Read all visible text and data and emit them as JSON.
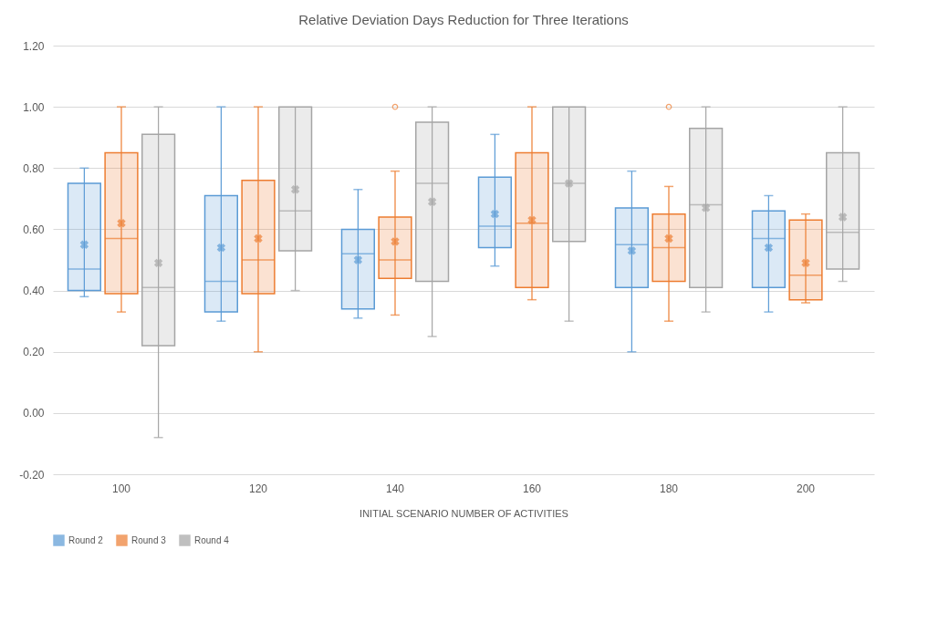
{
  "chart_data": {
    "type": "box",
    "title": "Relative Deviation Days Reduction for Three Iterations",
    "xlabel": "INITIAL SCENARIO NUMBER OF ACTIVITIES",
    "categories": [
      "100",
      "120",
      "140",
      "160",
      "180",
      "200"
    ],
    "ylim": [
      -0.2,
      1.2
    ],
    "yticks": [
      {
        "value": -0.2,
        "label": "-0.20"
      },
      {
        "value": 0,
        "label": "0.00"
      },
      {
        "value": 0.2,
        "label": "0.20"
      },
      {
        "value": 0.4,
        "label": "0.40"
      },
      {
        "value": 0.6,
        "label": "0.60"
      },
      {
        "value": 0.8,
        "label": "0.80"
      },
      {
        "value": 1.0,
        "label": "1.00"
      },
      {
        "value": 1.2,
        "label": "1.20"
      }
    ],
    "grid": "y",
    "legend": "bottom",
    "series": [
      {
        "name": "Round 2",
        "color": "#5b9bd5",
        "boxes": [
          {
            "low": 0.38,
            "q1": 0.4,
            "median": 0.47,
            "q3": 0.75,
            "high": 0.8,
            "mean": 0.55
          },
          {
            "low": 0.3,
            "q1": 0.33,
            "median": 0.43,
            "q3": 0.71,
            "high": 1.0,
            "mean": 0.54
          },
          {
            "low": 0.31,
            "q1": 0.34,
            "median": 0.52,
            "q3": 0.6,
            "high": 0.73,
            "mean": 0.5
          },
          {
            "low": 0.48,
            "q1": 0.54,
            "median": 0.61,
            "q3": 0.77,
            "high": 0.91,
            "mean": 0.65
          },
          {
            "low": 0.2,
            "q1": 0.41,
            "median": 0.55,
            "q3": 0.67,
            "high": 0.79,
            "mean": 0.53
          },
          {
            "low": 0.33,
            "q1": 0.41,
            "median": 0.57,
            "q3": 0.66,
            "high": 0.71,
            "mean": 0.54
          }
        ]
      },
      {
        "name": "Round 3",
        "color": "#ed7d31",
        "boxes": [
          {
            "low": 0.33,
            "q1": 0.39,
            "median": 0.57,
            "q3": 0.85,
            "high": 1.0,
            "mean": 0.62
          },
          {
            "low": 0.2,
            "q1": 0.39,
            "median": 0.5,
            "q3": 0.76,
            "high": 1.0,
            "mean": 0.57
          },
          {
            "low": 0.32,
            "q1": 0.44,
            "median": 0.5,
            "q3": 0.64,
            "high": 0.79,
            "mean": 0.56,
            "outliers": [
              1.0
            ]
          },
          {
            "low": 0.37,
            "q1": 0.41,
            "median": 0.62,
            "q3": 0.85,
            "high": 1.0,
            "mean": 0.63
          },
          {
            "low": 0.3,
            "q1": 0.43,
            "median": 0.54,
            "q3": 0.65,
            "high": 0.74,
            "mean": 0.57,
            "outliers": [
              1.0
            ]
          },
          {
            "low": 0.36,
            "q1": 0.37,
            "median": 0.45,
            "q3": 0.63,
            "high": 0.65,
            "mean": 0.49
          }
        ]
      },
      {
        "name": "Round 4",
        "color": "#a5a5a5",
        "boxes": [
          {
            "low": -0.08,
            "q1": 0.22,
            "median": 0.41,
            "q3": 0.91,
            "high": 1.0,
            "mean": 0.49
          },
          {
            "low": 0.4,
            "q1": 0.53,
            "median": 0.66,
            "q3": 1.0,
            "high": 1.0,
            "mean": 0.73
          },
          {
            "low": 0.25,
            "q1": 0.43,
            "median": 0.75,
            "q3": 0.95,
            "high": 1.0,
            "mean": 0.69
          },
          {
            "low": 0.3,
            "q1": 0.56,
            "median": 0.75,
            "q3": 1.0,
            "high": 1.0,
            "mean": 0.75
          },
          {
            "low": 0.33,
            "q1": 0.41,
            "median": 0.68,
            "q3": 0.93,
            "high": 1.0,
            "mean": 0.67
          },
          {
            "low": 0.43,
            "q1": 0.47,
            "median": 0.59,
            "q3": 0.85,
            "high": 1.0,
            "mean": 0.64
          }
        ]
      }
    ]
  }
}
